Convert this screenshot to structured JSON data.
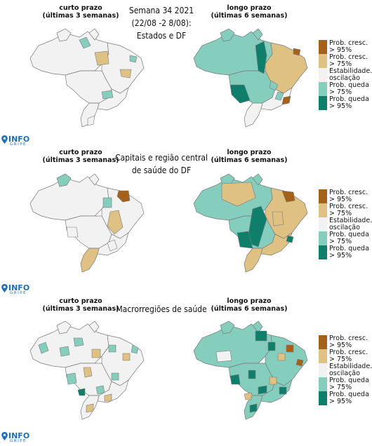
{
  "colors": {
    "cresc95": "#a4611a",
    "cresc75": "#dfc184",
    "estab": "#f2f2f2",
    "queda75": "#85cdbd",
    "queda95": "#0f7f6b",
    "border": "#7a7a7a",
    "logo": "#1e6fb8"
  },
  "sections": [
    {
      "title_lines": [
        "Semana 34 2021",
        "(22/08 -2 8/08):",
        "Estados e DF"
      ],
      "short_caption": [
        "curto prazo",
        "(últimas 3 semanas)"
      ],
      "long_caption": [
        "longo prazo",
        "(últimas 6 semanas)"
      ],
      "legend": true
    },
    {
      "title_lines": [
        "Capitais e região central",
        "de saúde do DF"
      ],
      "short_caption": [
        "curto prazo",
        "(últimas 3 semanas)"
      ],
      "long_caption": [
        "longo prazo",
        "(últimas 6 semanas)"
      ],
      "legend": true
    },
    {
      "title_lines": [
        "Macrorregiões de saúde"
      ],
      "short_caption": [
        "curto prazo",
        "(últimas 3 semanas)"
      ],
      "long_caption": [
        "longo prazo",
        "(últimas 6 semanas)"
      ],
      "legend": true
    }
  ],
  "legend_items": [
    {
      "key": "cresc95",
      "label": "Prob. cresc.\n> 95%"
    },
    {
      "key": "cresc75",
      "label": "Prob. cresc.\n> 75%"
    },
    {
      "key": "estab",
      "label": "Estabilidade./\noscilação"
    },
    {
      "key": "queda75",
      "label": "Prob. queda\n> 75%"
    },
    {
      "key": "queda95",
      "label": "Prob. queda\n> 95%"
    }
  ],
  "logo": {
    "text": "INFO",
    "subtext": "GRIPE",
    "icon": "location-pin-icon"
  }
}
